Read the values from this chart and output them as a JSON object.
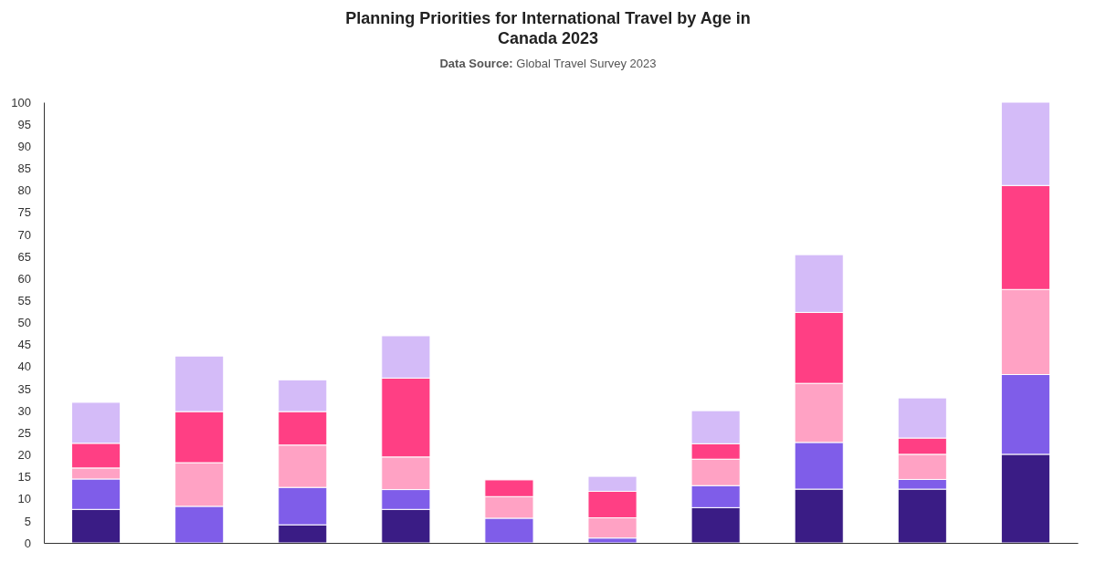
{
  "chart_data": {
    "type": "bar",
    "stacked": true,
    "title": "Planning Priorities for International Travel by Age in Canada 2023",
    "subtitle": "Data Source: Global Travel Survey 2023",
    "categories": [
      null,
      null,
      null,
      null,
      null,
      null,
      null,
      null,
      null,
      null
    ],
    "series": [
      {
        "color": "#3a1c85",
        "values": [
          7.6,
          0,
          4.1,
          7.6,
          0,
          0,
          8.0,
          12.2,
          12.2,
          20.1
        ]
      },
      {
        "color": "#7f5de9",
        "values": [
          6.9,
          8.3,
          8.5,
          4.5,
          5.6,
          1.1,
          5.0,
          10.6,
          2.2,
          18.1
        ]
      },
      {
        "color": "#ffa2c4",
        "values": [
          2.5,
          9.9,
          9.6,
          7.4,
          4.9,
          4.6,
          6.0,
          13.4,
          5.7,
          19.3
        ]
      },
      {
        "color": "#ff3f84",
        "values": [
          5.6,
          11.6,
          7.6,
          17.9,
          3.8,
          6.0,
          3.5,
          16.1,
          3.7,
          23.6
        ]
      },
      {
        "color": "#d4bbf8",
        "values": [
          9.3,
          12.6,
          7.2,
          9.6,
          0,
          3.4,
          7.5,
          13.1,
          9.1,
          18.9
        ]
      }
    ],
    "ylim": [
      0,
      100
    ],
    "yticks": [
      0,
      5,
      10,
      15,
      20,
      25,
      30,
      35,
      40,
      45,
      50,
      55,
      60,
      65,
      70,
      75,
      80,
      85,
      90,
      95,
      100
    ],
    "grid": false
  }
}
